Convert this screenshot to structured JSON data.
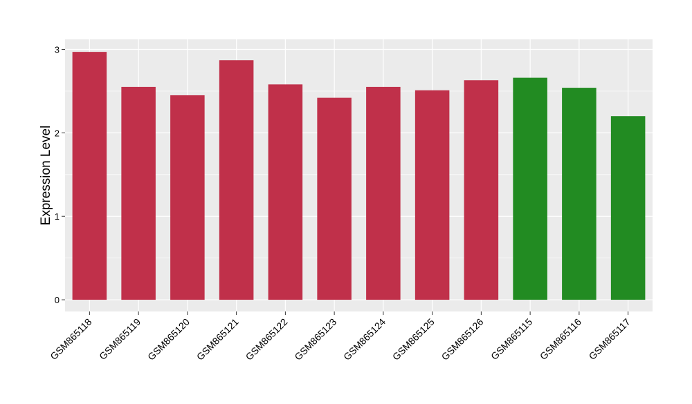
{
  "chart_data": {
    "type": "bar",
    "title": "",
    "xlabel": "",
    "ylabel": "Expression Level",
    "categories": [
      "GSM865118",
      "GSM865119",
      "GSM865120",
      "GSM865121",
      "GSM865122",
      "GSM865123",
      "GSM865124",
      "GSM865125",
      "GSM865126",
      "GSM865115",
      "GSM865116",
      "GSM865117"
    ],
    "values": [
      2.97,
      2.55,
      2.45,
      2.87,
      2.58,
      2.42,
      2.55,
      2.51,
      2.63,
      2.66,
      2.54,
      2.2
    ],
    "bar_colors": [
      "#c0304a",
      "#c0304a",
      "#c0304a",
      "#c0304a",
      "#c0304a",
      "#c0304a",
      "#c0304a",
      "#c0304a",
      "#c0304a",
      "#228b22",
      "#228b22",
      "#228b22"
    ],
    "ylim": [
      -0.14,
      3.12
    ],
    "yticks": [
      0,
      1,
      2,
      3
    ],
    "ytick_labels": [
      "0",
      "1",
      "2",
      "3"
    ],
    "grid": true,
    "panel_background": "#ebebeb",
    "grid_color": "#ffffff",
    "legend": "none"
  }
}
